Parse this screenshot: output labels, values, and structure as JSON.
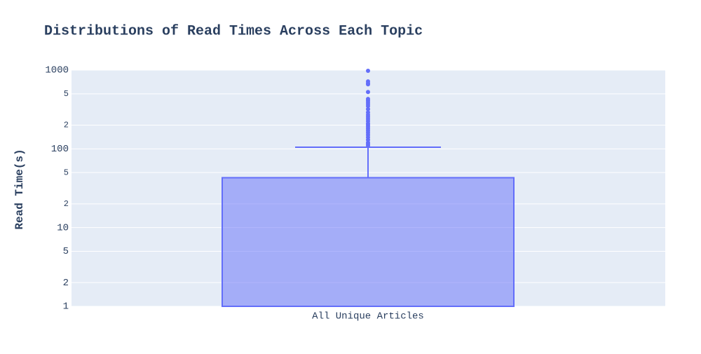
{
  "chart_data": {
    "type": "box",
    "title": "Distributions of Read Times Across Each Topic",
    "y_label": "Read Time(s)",
    "categories": [
      "All Unique Articles"
    ],
    "color": "#636efa",
    "log_y": true,
    "grid": true,
    "q3": 43,
    "upper_fence": 105,
    "outliers": [
      980,
      718,
      680,
      660,
      527,
      430,
      410,
      390,
      370,
      350,
      320,
      290,
      270,
      255,
      240,
      225,
      210,
      200,
      190,
      180,
      170,
      160,
      150,
      140,
      130,
      120,
      115,
      110
    ],
    "ylim": [
      1,
      1000
    ],
    "yticks": [
      1,
      2,
      5,
      10,
      {
        "value": 20,
        "label": "2"
      },
      {
        "value": 50,
        "label": "5"
      },
      100,
      {
        "value": 200,
        "label": "2"
      },
      {
        "value": 500,
        "label": "5"
      },
      1000
    ]
  }
}
